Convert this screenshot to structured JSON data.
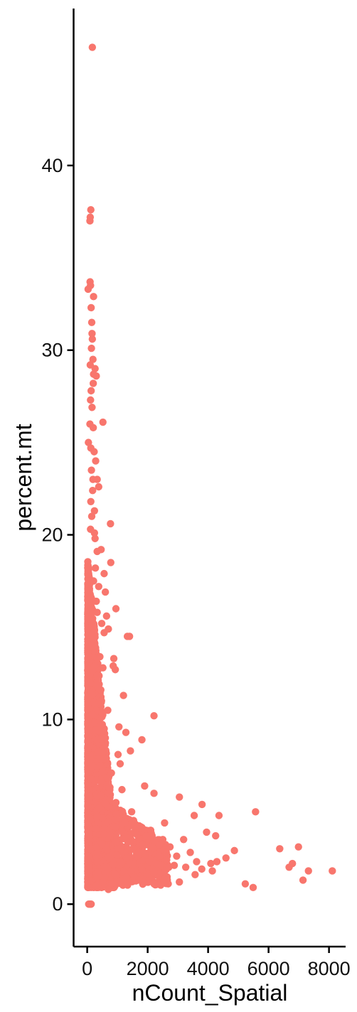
{
  "chart_data": {
    "type": "scatter",
    "title": "",
    "xlabel": "nCount_Spatial",
    "ylabel": "percent.mt",
    "xlim": [
      -450,
      8550
    ],
    "ylim": [
      -2.3,
      48.5
    ],
    "x_ticks": [
      0,
      2000,
      4000,
      6000,
      8000
    ],
    "y_ticks": [
      0,
      10,
      20,
      30,
      40
    ],
    "x_tick_labels": [
      "0",
      "2000",
      "4000",
      "6000",
      "8000"
    ],
    "y_tick_labels": [
      "0",
      "10",
      "20",
      "30",
      "40"
    ],
    "grid": false,
    "legend": "none",
    "point_color": "#F8766D",
    "series": [
      {
        "points": [
          [
            170,
            46.4
          ],
          [
            120,
            37.6
          ],
          [
            100,
            37.2
          ],
          [
            90,
            37.0
          ],
          [
            95,
            33.7
          ],
          [
            110,
            33.5
          ],
          [
            30,
            33.3
          ],
          [
            210,
            32.9
          ],
          [
            130,
            32.3
          ],
          [
            150,
            31.5
          ],
          [
            160,
            30.9
          ],
          [
            170,
            30.6
          ],
          [
            140,
            30.1
          ],
          [
            190,
            29.5
          ],
          [
            100,
            29.2
          ],
          [
            260,
            29.0
          ],
          [
            210,
            28.7
          ],
          [
            300,
            28.6
          ],
          [
            200,
            28.2
          ],
          [
            130,
            27.8
          ],
          [
            110,
            27.3
          ],
          [
            160,
            26.9
          ],
          [
            520,
            26.1
          ],
          [
            90,
            26.0
          ],
          [
            200,
            25.8
          ],
          [
            40,
            25.0
          ],
          [
            120,
            24.7
          ],
          [
            280,
            24.0
          ],
          [
            140,
            23.5
          ],
          [
            330,
            23.0
          ],
          [
            180,
            22.4
          ],
          [
            380,
            22.6
          ],
          [
            120,
            21.8
          ],
          [
            240,
            21.3
          ],
          [
            150,
            21.0
          ],
          [
            770,
            20.6
          ],
          [
            110,
            20.3
          ],
          [
            260,
            19.8
          ],
          [
            460,
            19.2
          ],
          [
            780,
            18.5
          ],
          [
            560,
            17.9
          ],
          [
            210,
            17.5
          ],
          [
            600,
            16.9
          ],
          [
            950,
            16.0
          ],
          [
            330,
            15.8
          ],
          [
            480,
            15.2
          ],
          [
            700,
            14.9
          ],
          [
            1330,
            14.5
          ],
          [
            1400,
            14.5
          ],
          [
            250,
            14.0
          ],
          [
            880,
            13.3
          ],
          [
            520,
            12.8
          ],
          [
            860,
            12.9
          ],
          [
            930,
            12.7
          ],
          [
            1200,
            11.3
          ],
          [
            2210,
            10.2
          ],
          [
            1050,
            9.6
          ],
          [
            1280,
            9.3
          ],
          [
            1810,
            8.9
          ],
          [
            1430,
            8.3
          ],
          [
            1090,
            7.6
          ],
          [
            1900,
            6.4
          ],
          [
            2210,
            6.0
          ],
          [
            3050,
            5.8
          ],
          [
            3800,
            5.4
          ],
          [
            1470,
            5.0
          ],
          [
            5570,
            5.0
          ],
          [
            3540,
            4.8
          ],
          [
            4360,
            4.8
          ],
          [
            2560,
            4.4
          ],
          [
            1590,
            4.2
          ],
          [
            2100,
            4.0
          ],
          [
            3950,
            3.9
          ],
          [
            4250,
            3.7
          ],
          [
            3190,
            3.5
          ],
          [
            2380,
            3.2
          ],
          [
            2740,
            3.1
          ],
          [
            6370,
            3.0
          ],
          [
            6990,
            3.1
          ],
          [
            4870,
            2.9
          ],
          [
            3410,
            2.8
          ],
          [
            2960,
            2.6
          ],
          [
            4590,
            2.5
          ],
          [
            3620,
            2.3
          ],
          [
            4090,
            2.2
          ],
          [
            4290,
            2.3
          ],
          [
            6790,
            2.2
          ],
          [
            6680,
            2.0
          ],
          [
            3260,
            2.0
          ],
          [
            2880,
            2.1
          ],
          [
            3790,
            1.9
          ],
          [
            4140,
            1.8
          ],
          [
            7320,
            1.8
          ],
          [
            8110,
            1.8
          ],
          [
            2200,
            1.7
          ],
          [
            3570,
            1.6
          ],
          [
            5230,
            1.1
          ],
          [
            5490,
            0.9
          ],
          [
            7140,
            1.3
          ],
          [
            3050,
            1.2
          ],
          [
            2650,
            1.3
          ],
          [
            1710,
            1.3
          ],
          [
            2210,
            1.1
          ],
          [
            700,
            0.8
          ],
          [
            300,
            1.0
          ],
          [
            50,
            0.0
          ],
          [
            90,
            0.0
          ],
          [
            130,
            0.0
          ],
          [
            1100,
            3.0
          ],
          [
            1300,
            2.5
          ],
          [
            1500,
            3.4
          ],
          [
            1700,
            2.8
          ],
          [
            1800,
            1.9
          ],
          [
            1950,
            3.7
          ],
          [
            2050,
            2.3
          ],
          [
            2400,
            2.6
          ],
          [
            2500,
            3.5
          ],
          [
            2700,
            2.0
          ],
          [
            1250,
            4.4
          ],
          [
            950,
            5.5
          ],
          [
            1150,
            6.2
          ],
          [
            800,
            7.1
          ],
          [
            1020,
            8.1
          ],
          [
            600,
            9.0
          ],
          [
            680,
            10.5
          ],
          [
            450,
            11.6
          ],
          [
            350,
            12.1
          ],
          [
            420,
            13.4
          ],
          [
            560,
            14.7
          ],
          [
            640,
            15.6
          ],
          [
            300,
            16.4
          ],
          [
            380,
            17.2
          ],
          [
            270,
            18.2
          ],
          [
            330,
            19.1
          ],
          [
            240,
            20.1
          ],
          [
            190,
            23.0
          ],
          [
            230,
            24.5
          ]
        ]
      }
    ]
  }
}
